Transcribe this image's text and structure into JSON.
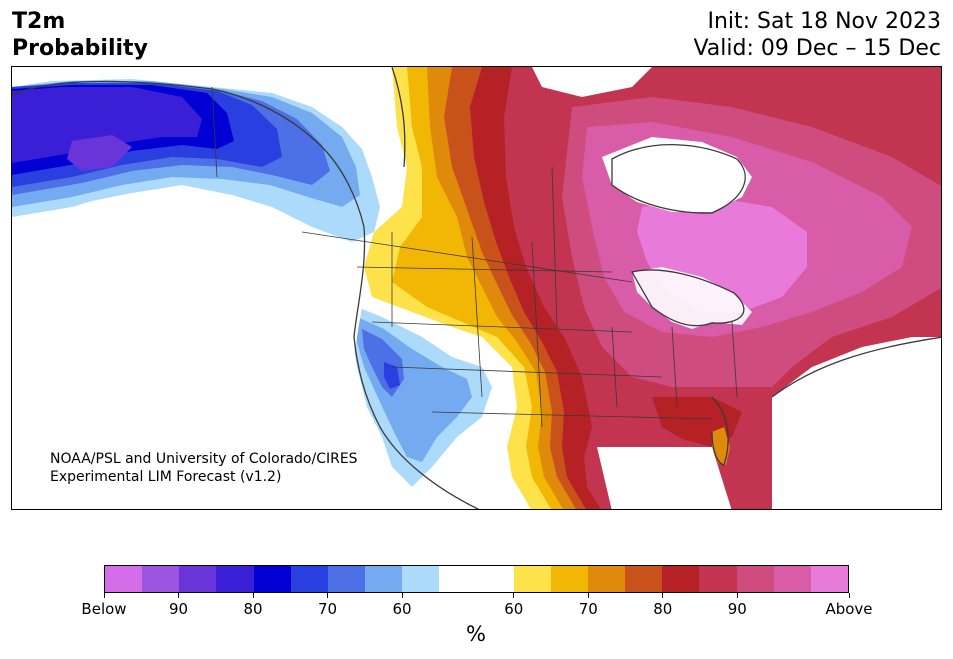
{
  "title": {
    "variable": "T2m",
    "kind": "Probability"
  },
  "forecast": {
    "init": "Init: Sat 18 Nov 2023",
    "valid": "Valid: 09 Dec – 15 Dec"
  },
  "credit": {
    "line1": "NOAA/PSL and University of Colorado/CIRES",
    "line2": "Experimental LIM Forecast (v1.2)"
  },
  "colorbar": {
    "unit": "%",
    "ticks": [
      "Below",
      "90",
      "80",
      "70",
      "60",
      "60",
      "70",
      "80",
      "90",
      "Above"
    ],
    "below_colors": [
      "#d46ee8",
      "#9b55e0",
      "#6a35d8",
      "#3a1fd6",
      "#0000d4",
      "#2a3fe0",
      "#4d70e6",
      "#74aaf0",
      "#acdafa"
    ],
    "neutral_color": "#ffffff",
    "above_colors": [
      "#fde24a",
      "#f2b705",
      "#e08a0c",
      "#c9521b",
      "#b52125",
      "#c2344f",
      "#cf4c7e",
      "#d85ca8",
      "#e87ad9"
    ]
  }
}
